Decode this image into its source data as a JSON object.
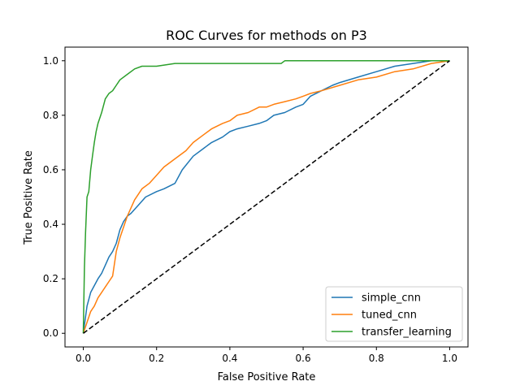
{
  "chart_data": {
    "type": "line",
    "title": "ROC Curves for methods on P3",
    "xlabel": "False Positive Rate",
    "ylabel": "True Positive Rate",
    "xlim": [
      -0.05,
      1.05
    ],
    "ylim": [
      -0.05,
      1.05
    ],
    "xticks": [
      "0.0",
      "0.2",
      "0.4",
      "0.6",
      "0.8",
      "1.0"
    ],
    "yticks": [
      "0.0",
      "0.2",
      "0.4",
      "0.6",
      "0.8",
      "1.0"
    ],
    "grid": false,
    "legend_position": "lower-right",
    "reference_line": {
      "x": [
        0,
        1
      ],
      "y": [
        0,
        1
      ],
      "color": "#000000",
      "style": "dashed"
    },
    "series": [
      {
        "name": "simple_cnn",
        "color": "#1f77b4",
        "x": [
          0,
          0.01,
          0.02,
          0.04,
          0.05,
          0.06,
          0.07,
          0.08,
          0.09,
          0.1,
          0.11,
          0.12,
          0.13,
          0.15,
          0.17,
          0.2,
          0.22,
          0.25,
          0.27,
          0.3,
          0.33,
          0.35,
          0.38,
          0.4,
          0.42,
          0.45,
          0.48,
          0.5,
          0.52,
          0.55,
          0.58,
          0.6,
          0.62,
          0.65,
          0.68,
          0.7,
          0.75,
          0.8,
          0.85,
          0.9,
          0.95,
          1.0
        ],
        "y": [
          0,
          0.1,
          0.15,
          0.2,
          0.22,
          0.25,
          0.28,
          0.3,
          0.33,
          0.38,
          0.41,
          0.43,
          0.44,
          0.47,
          0.5,
          0.52,
          0.53,
          0.55,
          0.6,
          0.65,
          0.68,
          0.7,
          0.72,
          0.74,
          0.75,
          0.76,
          0.77,
          0.78,
          0.8,
          0.81,
          0.83,
          0.84,
          0.87,
          0.89,
          0.91,
          0.92,
          0.94,
          0.96,
          0.98,
          0.99,
          1.0,
          1.0
        ]
      },
      {
        "name": "tuned_cnn",
        "color": "#ff7f0e",
        "x": [
          0,
          0.01,
          0.02,
          0.03,
          0.04,
          0.05,
          0.06,
          0.07,
          0.08,
          0.09,
          0.1,
          0.12,
          0.14,
          0.16,
          0.18,
          0.2,
          0.22,
          0.25,
          0.28,
          0.3,
          0.33,
          0.35,
          0.38,
          0.4,
          0.42,
          0.45,
          0.48,
          0.5,
          0.52,
          0.55,
          0.58,
          0.6,
          0.62,
          0.65,
          0.7,
          0.75,
          0.8,
          0.85,
          0.9,
          0.95,
          1.0
        ],
        "y": [
          0,
          0.04,
          0.08,
          0.1,
          0.13,
          0.15,
          0.17,
          0.19,
          0.21,
          0.3,
          0.35,
          0.43,
          0.49,
          0.53,
          0.55,
          0.58,
          0.61,
          0.64,
          0.67,
          0.7,
          0.73,
          0.75,
          0.77,
          0.78,
          0.8,
          0.81,
          0.83,
          0.83,
          0.84,
          0.85,
          0.86,
          0.87,
          0.88,
          0.89,
          0.91,
          0.93,
          0.94,
          0.96,
          0.97,
          0.99,
          1.0
        ]
      },
      {
        "name": "transfer_learning",
        "color": "#2ca02c",
        "x": [
          0,
          0.003,
          0.006,
          0.01,
          0.015,
          0.02,
          0.025,
          0.03,
          0.035,
          0.04,
          0.05,
          0.06,
          0.07,
          0.08,
          0.09,
          0.1,
          0.12,
          0.14,
          0.16,
          0.2,
          0.25,
          0.3,
          0.4,
          0.54,
          0.55,
          0.7,
          0.8,
          0.9,
          1.0
        ],
        "y": [
          0,
          0.24,
          0.37,
          0.5,
          0.52,
          0.6,
          0.65,
          0.7,
          0.74,
          0.77,
          0.81,
          0.86,
          0.88,
          0.89,
          0.91,
          0.93,
          0.95,
          0.97,
          0.98,
          0.98,
          0.99,
          0.99,
          0.99,
          0.99,
          1.0,
          1.0,
          1.0,
          1.0,
          1.0
        ]
      }
    ]
  }
}
